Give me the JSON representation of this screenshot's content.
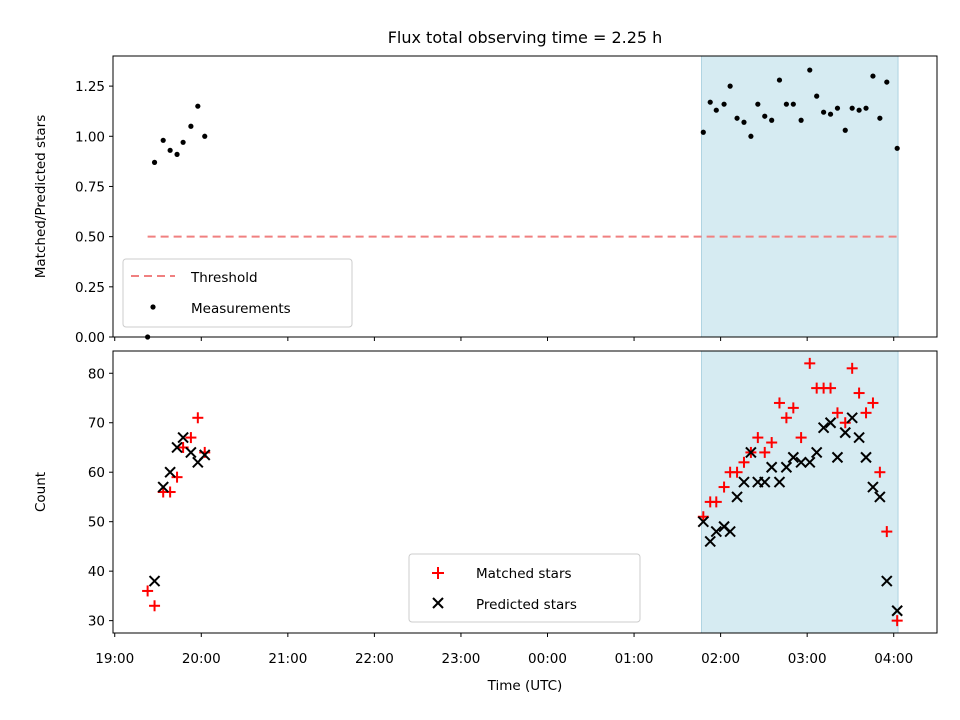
{
  "chart_data": {
    "type": "scatter",
    "title": "Flux total observing time = 2.25 h",
    "xlabel": "Time (UTC)",
    "x_unit": "hours since 19:00 UTC",
    "xlim": [
      18.98,
      28.5
    ],
    "x_ticks": [
      {
        "value": 19,
        "label": "19:00"
      },
      {
        "value": 20,
        "label": "20:00"
      },
      {
        "value": 21,
        "label": "21:00"
      },
      {
        "value": 22,
        "label": "22:00"
      },
      {
        "value": 23,
        "label": "23:00"
      },
      {
        "value": 24,
        "label": "00:00"
      },
      {
        "value": 25,
        "label": "01:00"
      },
      {
        "value": 26,
        "label": "02:00"
      },
      {
        "value": 27,
        "label": "03:00"
      },
      {
        "value": 28,
        "label": "04:00"
      }
    ],
    "observing_window": {
      "start": 25.78,
      "end": 28.05,
      "color": "#add8e6"
    },
    "panels": [
      {
        "id": "ratio",
        "ylabel": "Matched/Predicted stars",
        "ylim": [
          0,
          1.4
        ],
        "y_ticks": [
          0,
          0.25,
          0.5,
          0.75,
          1.0,
          1.25
        ],
        "y_tick_labels": [
          "0.00",
          "0.25",
          "0.50",
          "0.75",
          "1.00",
          "1.25"
        ],
        "threshold": {
          "name": "Threshold",
          "value": 0.5,
          "x_start": 19.38,
          "x_end": 28.08,
          "color": "#f08080"
        },
        "series": [
          {
            "name": "Measurements",
            "marker": "dot",
            "color": "#000000",
            "points": [
              [
                19.38,
                0.0
              ],
              [
                19.46,
                0.87
              ],
              [
                19.56,
                0.98
              ],
              [
                19.64,
                0.93
              ],
              [
                19.72,
                0.91
              ],
              [
                19.79,
                0.97
              ],
              [
                19.88,
                1.05
              ],
              [
                19.96,
                1.15
              ],
              [
                20.04,
                1.0
              ],
              [
                25.8,
                1.02
              ],
              [
                25.88,
                1.17
              ],
              [
                25.95,
                1.13
              ],
              [
                26.04,
                1.16
              ],
              [
                26.11,
                1.25
              ],
              [
                26.19,
                1.09
              ],
              [
                26.27,
                1.07
              ],
              [
                26.35,
                1.0
              ],
              [
                26.43,
                1.16
              ],
              [
                26.51,
                1.1
              ],
              [
                26.59,
                1.08
              ],
              [
                26.68,
                1.28
              ],
              [
                26.76,
                1.16
              ],
              [
                26.84,
                1.16
              ],
              [
                26.93,
                1.08
              ],
              [
                27.03,
                1.33
              ],
              [
                27.11,
                1.2
              ],
              [
                27.19,
                1.12
              ],
              [
                27.27,
                1.11
              ],
              [
                27.35,
                1.14
              ],
              [
                27.44,
                1.03
              ],
              [
                27.52,
                1.14
              ],
              [
                27.6,
                1.13
              ],
              [
                27.68,
                1.14
              ],
              [
                27.76,
                1.3
              ],
              [
                27.84,
                1.09
              ],
              [
                27.92,
                1.27
              ],
              [
                28.04,
                0.94
              ]
            ]
          }
        ],
        "legend": {
          "position": "lower-left",
          "entries": [
            "Threshold",
            "Measurements"
          ]
        }
      },
      {
        "id": "count",
        "ylabel": "Count",
        "ylim": [
          27.5,
          84.5
        ],
        "y_ticks": [
          30,
          40,
          50,
          60,
          70,
          80
        ],
        "y_tick_labels": [
          "30",
          "40",
          "50",
          "60",
          "70",
          "80"
        ],
        "series": [
          {
            "name": "Matched stars",
            "marker": "plus",
            "color": "#ff0000",
            "points": [
              [
                19.38,
                36
              ],
              [
                19.46,
                33
              ],
              [
                19.56,
                56
              ],
              [
                19.64,
                56
              ],
              [
                19.72,
                59
              ],
              [
                19.79,
                65
              ],
              [
                19.88,
                67
              ],
              [
                19.96,
                71
              ],
              [
                20.04,
                64
              ],
              [
                25.8,
                51
              ],
              [
                25.88,
                54
              ],
              [
                25.95,
                54
              ],
              [
                26.04,
                57
              ],
              [
                26.11,
                60
              ],
              [
                26.19,
                60
              ],
              [
                26.27,
                62
              ],
              [
                26.35,
                64
              ],
              [
                26.43,
                67
              ],
              [
                26.51,
                64
              ],
              [
                26.59,
                66
              ],
              [
                26.68,
                74
              ],
              [
                26.76,
                71
              ],
              [
                26.84,
                73
              ],
              [
                26.93,
                67
              ],
              [
                27.03,
                82
              ],
              [
                27.11,
                77
              ],
              [
                27.19,
                77
              ],
              [
                27.27,
                77
              ],
              [
                27.35,
                72
              ],
              [
                27.44,
                70
              ],
              [
                27.52,
                81
              ],
              [
                27.6,
                76
              ],
              [
                27.68,
                72
              ],
              [
                27.76,
                74
              ],
              [
                27.84,
                60
              ],
              [
                27.92,
                48
              ],
              [
                28.04,
                30
              ]
            ]
          },
          {
            "name": "Predicted stars",
            "marker": "x",
            "color": "#000000",
            "points": [
              [
                19.46,
                38
              ],
              [
                19.56,
                57
              ],
              [
                19.64,
                60
              ],
              [
                19.72,
                65
              ],
              [
                19.79,
                67
              ],
              [
                19.88,
                64
              ],
              [
                19.96,
                62
              ],
              [
                20.04,
                63.5
              ],
              [
                25.8,
                50
              ],
              [
                25.88,
                46
              ],
              [
                25.95,
                48
              ],
              [
                26.04,
                49
              ],
              [
                26.11,
                48
              ],
              [
                26.19,
                55
              ],
              [
                26.27,
                58
              ],
              [
                26.35,
                64
              ],
              [
                26.43,
                58
              ],
              [
                26.51,
                58
              ],
              [
                26.59,
                61
              ],
              [
                26.68,
                58
              ],
              [
                26.76,
                61
              ],
              [
                26.84,
                63
              ],
              [
                26.93,
                62
              ],
              [
                27.03,
                62
              ],
              [
                27.11,
                64
              ],
              [
                27.19,
                69
              ],
              [
                27.27,
                70
              ],
              [
                27.35,
                63
              ],
              [
                27.44,
                68
              ],
              [
                27.52,
                71
              ],
              [
                27.6,
                67
              ],
              [
                27.68,
                63
              ],
              [
                27.76,
                57
              ],
              [
                27.84,
                55
              ],
              [
                27.92,
                38
              ],
              [
                28.04,
                32
              ]
            ]
          }
        ],
        "legend": {
          "position": "lower-center",
          "entries": [
            "Matched stars",
            "Predicted stars"
          ]
        }
      }
    ]
  }
}
